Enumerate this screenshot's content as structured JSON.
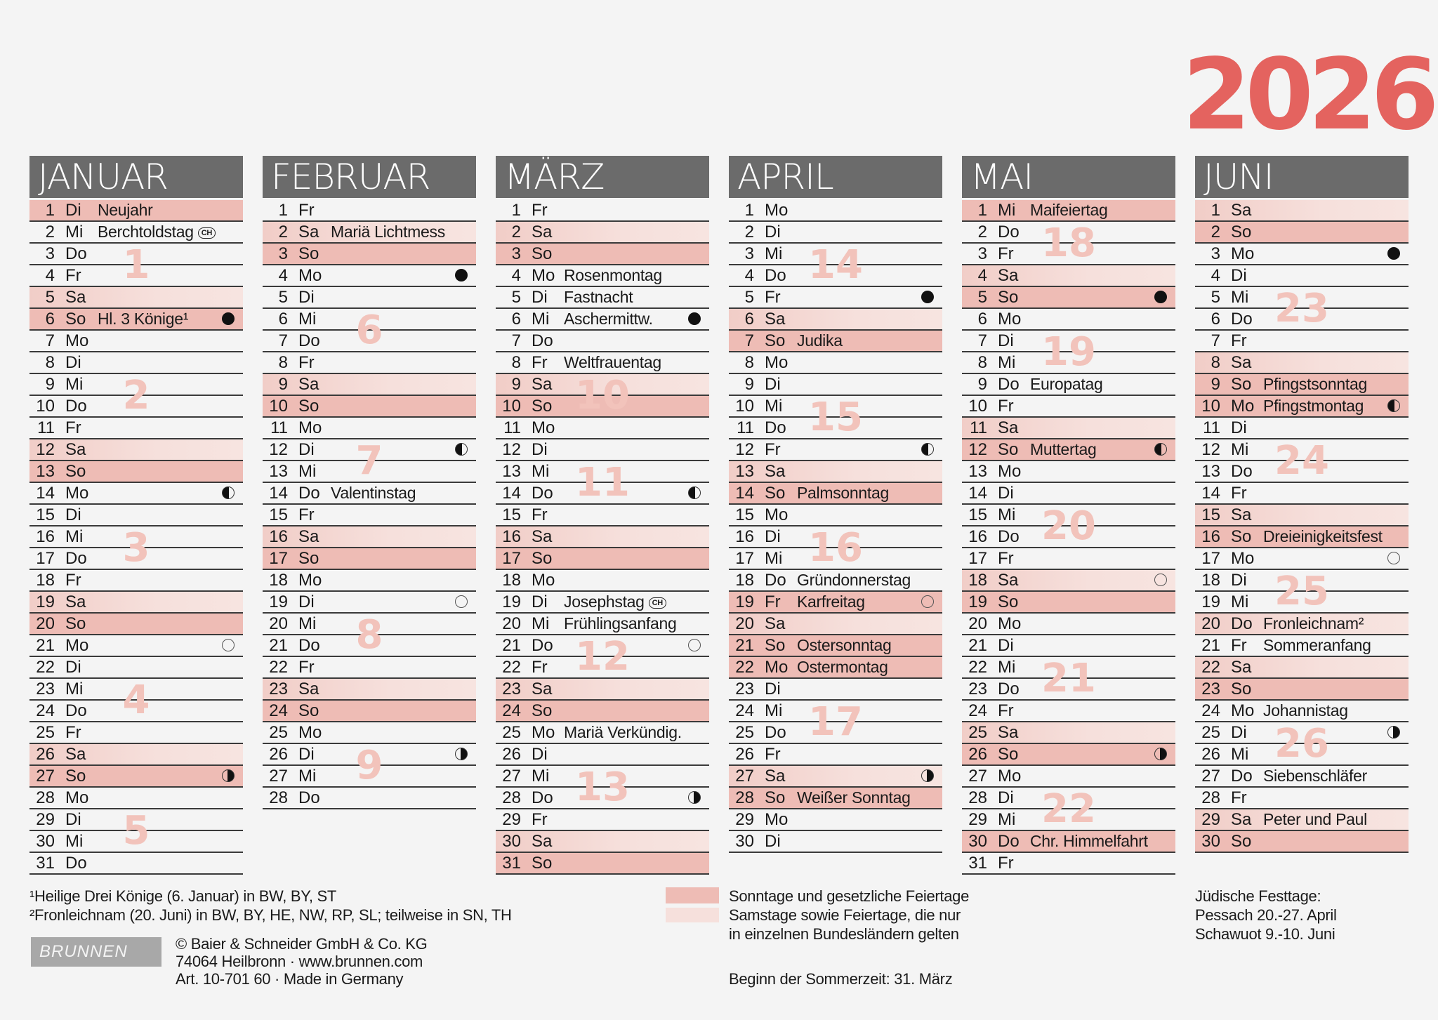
{
  "year": "2026",
  "colors": {
    "year": "#e4635f",
    "header": "#6b6b6b",
    "sunday_holiday": "#eebcb5",
    "saturday_regional": "#f6e0dc",
    "week_number": "#f2c3bb"
  },
  "months": [
    {
      "name": "JANUAR",
      "weeks": [
        {
          "num": "1",
          "from": 1,
          "to": 6
        },
        {
          "num": "2",
          "from": 7,
          "to": 13
        },
        {
          "num": "3",
          "from": 14,
          "to": 20
        },
        {
          "num": "4",
          "from": 21,
          "to": 27
        },
        {
          "num": "5",
          "from": 28,
          "to": 31
        }
      ],
      "days": [
        {
          "d": "1",
          "w": "Di",
          "l": "Neujahr",
          "t": "strong"
        },
        {
          "d": "2",
          "w": "Mi",
          "l": "Berchtoldstag",
          "ch": "CH"
        },
        {
          "d": "3",
          "w": "Do"
        },
        {
          "d": "4",
          "w": "Fr"
        },
        {
          "d": "5",
          "w": "Sa",
          "t": "light"
        },
        {
          "d": "6",
          "w": "So",
          "l": "Hl. 3 Könige¹",
          "t": "strong",
          "m": "full"
        },
        {
          "d": "7",
          "w": "Mo"
        },
        {
          "d": "8",
          "w": "Di"
        },
        {
          "d": "9",
          "w": "Mi"
        },
        {
          "d": "10",
          "w": "Do"
        },
        {
          "d": "11",
          "w": "Fr"
        },
        {
          "d": "12",
          "w": "Sa",
          "t": "light"
        },
        {
          "d": "13",
          "w": "So",
          "t": "strong"
        },
        {
          "d": "14",
          "w": "Mo",
          "m": "first"
        },
        {
          "d": "15",
          "w": "Di"
        },
        {
          "d": "16",
          "w": "Mi"
        },
        {
          "d": "17",
          "w": "Do"
        },
        {
          "d": "18",
          "w": "Fr"
        },
        {
          "d": "19",
          "w": "Sa",
          "t": "light"
        },
        {
          "d": "20",
          "w": "So",
          "t": "strong"
        },
        {
          "d": "21",
          "w": "Mo",
          "m": "new"
        },
        {
          "d": "22",
          "w": "Di"
        },
        {
          "d": "23",
          "w": "Mi"
        },
        {
          "d": "24",
          "w": "Do"
        },
        {
          "d": "25",
          "w": "Fr"
        },
        {
          "d": "26",
          "w": "Sa",
          "t": "light"
        },
        {
          "d": "27",
          "w": "So",
          "t": "strong",
          "m": "last"
        },
        {
          "d": "28",
          "w": "Mo"
        },
        {
          "d": "29",
          "w": "Di"
        },
        {
          "d": "30",
          "w": "Mi"
        },
        {
          "d": "31",
          "w": "Do"
        }
      ]
    },
    {
      "name": "FEBRUAR",
      "weeks": [
        {
          "num": "6",
          "from": 4,
          "to": 10
        },
        {
          "num": "7",
          "from": 11,
          "to": 17
        },
        {
          "num": "8",
          "from": 18,
          "to": 24
        },
        {
          "num": "9",
          "from": 25,
          "to": 28
        }
      ],
      "days": [
        {
          "d": "1",
          "w": "Fr"
        },
        {
          "d": "2",
          "w": "Sa",
          "l": "Mariä Lichtmess",
          "t": "light"
        },
        {
          "d": "3",
          "w": "So",
          "t": "strong"
        },
        {
          "d": "4",
          "w": "Mo",
          "m": "full"
        },
        {
          "d": "5",
          "w": "Di"
        },
        {
          "d": "6",
          "w": "Mi"
        },
        {
          "d": "7",
          "w": "Do"
        },
        {
          "d": "8",
          "w": "Fr"
        },
        {
          "d": "9",
          "w": "Sa",
          "t": "light"
        },
        {
          "d": "10",
          "w": "So",
          "t": "strong"
        },
        {
          "d": "11",
          "w": "Mo"
        },
        {
          "d": "12",
          "w": "Di",
          "m": "first"
        },
        {
          "d": "13",
          "w": "Mi"
        },
        {
          "d": "14",
          "w": "Do",
          "l": "Valentinstag"
        },
        {
          "d": "15",
          "w": "Fr"
        },
        {
          "d": "16",
          "w": "Sa",
          "t": "light"
        },
        {
          "d": "17",
          "w": "So",
          "t": "strong"
        },
        {
          "d": "18",
          "w": "Mo"
        },
        {
          "d": "19",
          "w": "Di",
          "m": "new"
        },
        {
          "d": "20",
          "w": "Mi"
        },
        {
          "d": "21",
          "w": "Do"
        },
        {
          "d": "22",
          "w": "Fr"
        },
        {
          "d": "23",
          "w": "Sa",
          "t": "light"
        },
        {
          "d": "24",
          "w": "So",
          "t": "strong"
        },
        {
          "d": "25",
          "w": "Mo"
        },
        {
          "d": "26",
          "w": "Di",
          "m": "last"
        },
        {
          "d": "27",
          "w": "Mi"
        },
        {
          "d": "28",
          "w": "Do"
        }
      ]
    },
    {
      "name": "MÄRZ",
      "weeks": [
        {
          "num": "10",
          "from": 4,
          "to": 10
        },
        {
          "num": "11",
          "from": 11,
          "to": 17
        },
        {
          "num": "12",
          "from": 18,
          "to": 24
        },
        {
          "num": "13",
          "from": 25,
          "to": 31
        }
      ],
      "days": [
        {
          "d": "1",
          "w": "Fr"
        },
        {
          "d": "2",
          "w": "Sa",
          "t": "light"
        },
        {
          "d": "3",
          "w": "So",
          "t": "strong"
        },
        {
          "d": "4",
          "w": "Mo",
          "l": "Rosenmontag"
        },
        {
          "d": "5",
          "w": "Di",
          "l": "Fastnacht"
        },
        {
          "d": "6",
          "w": "Mi",
          "l": "Aschermittw.",
          "m": "full"
        },
        {
          "d": "7",
          "w": "Do"
        },
        {
          "d": "8",
          "w": "Fr",
          "l": "Weltfrauentag"
        },
        {
          "d": "9",
          "w": "Sa",
          "t": "light"
        },
        {
          "d": "10",
          "w": "So",
          "t": "strong"
        },
        {
          "d": "11",
          "w": "Mo"
        },
        {
          "d": "12",
          "w": "Di"
        },
        {
          "d": "13",
          "w": "Mi"
        },
        {
          "d": "14",
          "w": "Do",
          "m": "first"
        },
        {
          "d": "15",
          "w": "Fr"
        },
        {
          "d": "16",
          "w": "Sa",
          "t": "light"
        },
        {
          "d": "17",
          "w": "So",
          "t": "strong"
        },
        {
          "d": "18",
          "w": "Mo"
        },
        {
          "d": "19",
          "w": "Di",
          "l": "Josephstag",
          "ch": "CH"
        },
        {
          "d": "20",
          "w": "Mi",
          "l": "Frühlingsanfang"
        },
        {
          "d": "21",
          "w": "Do",
          "m": "new"
        },
        {
          "d": "22",
          "w": "Fr"
        },
        {
          "d": "23",
          "w": "Sa",
          "t": "light"
        },
        {
          "d": "24",
          "w": "So",
          "t": "strong"
        },
        {
          "d": "25",
          "w": "Mo",
          "l": "Mariä Verkündig."
        },
        {
          "d": "26",
          "w": "Di"
        },
        {
          "d": "27",
          "w": "Mi"
        },
        {
          "d": "28",
          "w": "Do",
          "m": "last"
        },
        {
          "d": "29",
          "w": "Fr"
        },
        {
          "d": "30",
          "w": "Sa",
          "t": "light"
        },
        {
          "d": "31",
          "w": "So",
          "t": "strong"
        }
      ]
    },
    {
      "name": "APRIL",
      "weeks": [
        {
          "num": "14",
          "from": 1,
          "to": 7
        },
        {
          "num": "15",
          "from": 8,
          "to": 14
        },
        {
          "num": "16",
          "from": 15,
          "to": 21
        },
        {
          "num": "17",
          "from": 22,
          "to": 28
        }
      ],
      "days": [
        {
          "d": "1",
          "w": "Mo"
        },
        {
          "d": "2",
          "w": "Di"
        },
        {
          "d": "3",
          "w": "Mi"
        },
        {
          "d": "4",
          "w": "Do"
        },
        {
          "d": "5",
          "w": "Fr",
          "m": "full"
        },
        {
          "d": "6",
          "w": "Sa",
          "t": "light"
        },
        {
          "d": "7",
          "w": "So",
          "l": "Judika",
          "t": "strong"
        },
        {
          "d": "8",
          "w": "Mo"
        },
        {
          "d": "9",
          "w": "Di"
        },
        {
          "d": "10",
          "w": "Mi"
        },
        {
          "d": "11",
          "w": "Do"
        },
        {
          "d": "12",
          "w": "Fr",
          "m": "first"
        },
        {
          "d": "13",
          "w": "Sa",
          "t": "light"
        },
        {
          "d": "14",
          "w": "So",
          "l": "Palmsonntag",
          "t": "strong"
        },
        {
          "d": "15",
          "w": "Mo"
        },
        {
          "d": "16",
          "w": "Di"
        },
        {
          "d": "17",
          "w": "Mi"
        },
        {
          "d": "18",
          "w": "Do",
          "l": "Gründonnerstag"
        },
        {
          "d": "19",
          "w": "Fr",
          "l": "Karfreitag",
          "t": "strong",
          "m": "new"
        },
        {
          "d": "20",
          "w": "Sa",
          "t": "light"
        },
        {
          "d": "21",
          "w": "So",
          "l": "Ostersonntag",
          "t": "strong"
        },
        {
          "d": "22",
          "w": "Mo",
          "l": "Ostermontag",
          "t": "strong"
        },
        {
          "d": "23",
          "w": "Di"
        },
        {
          "d": "24",
          "w": "Mi"
        },
        {
          "d": "25",
          "w": "Do"
        },
        {
          "d": "26",
          "w": "Fr"
        },
        {
          "d": "27",
          "w": "Sa",
          "t": "light",
          "m": "last"
        },
        {
          "d": "28",
          "w": "So",
          "l": "Weißer Sonntag",
          "t": "strong"
        },
        {
          "d": "29",
          "w": "Mo"
        },
        {
          "d": "30",
          "w": "Di"
        }
      ]
    },
    {
      "name": "MAI",
      "weeks": [
        {
          "num": "18",
          "from": 1,
          "to": 5
        },
        {
          "num": "19",
          "from": 6,
          "to": 12
        },
        {
          "num": "20",
          "from": 13,
          "to": 19
        },
        {
          "num": "21",
          "from": 20,
          "to": 26
        },
        {
          "num": "22",
          "from": 27,
          "to": 31
        }
      ],
      "days": [
        {
          "d": "1",
          "w": "Mi",
          "l": "Maifeiertag",
          "t": "strong"
        },
        {
          "d": "2",
          "w": "Do"
        },
        {
          "d": "3",
          "w": "Fr"
        },
        {
          "d": "4",
          "w": "Sa",
          "t": "light"
        },
        {
          "d": "5",
          "w": "So",
          "t": "strong",
          "m": "full"
        },
        {
          "d": "6",
          "w": "Mo"
        },
        {
          "d": "7",
          "w": "Di"
        },
        {
          "d": "8",
          "w": "Mi"
        },
        {
          "d": "9",
          "w": "Do",
          "l": "Europatag"
        },
        {
          "d": "10",
          "w": "Fr"
        },
        {
          "d": "11",
          "w": "Sa",
          "t": "light"
        },
        {
          "d": "12",
          "w": "So",
          "l": "Muttertag",
          "t": "strong",
          "m": "first"
        },
        {
          "d": "13",
          "w": "Mo"
        },
        {
          "d": "14",
          "w": "Di"
        },
        {
          "d": "15",
          "w": "Mi"
        },
        {
          "d": "16",
          "w": "Do"
        },
        {
          "d": "17",
          "w": "Fr"
        },
        {
          "d": "18",
          "w": "Sa",
          "t": "light",
          "m": "new"
        },
        {
          "d": "19",
          "w": "So",
          "t": "strong"
        },
        {
          "d": "20",
          "w": "Mo"
        },
        {
          "d": "21",
          "w": "Di"
        },
        {
          "d": "22",
          "w": "Mi"
        },
        {
          "d": "23",
          "w": "Do"
        },
        {
          "d": "24",
          "w": "Fr"
        },
        {
          "d": "25",
          "w": "Sa",
          "t": "light"
        },
        {
          "d": "26",
          "w": "So",
          "t": "strong",
          "m": "last"
        },
        {
          "d": "27",
          "w": "Mo"
        },
        {
          "d": "28",
          "w": "Di"
        },
        {
          "d": "29",
          "w": "Mi"
        },
        {
          "d": "30",
          "w": "Do",
          "l": "Chr. Himmelfahrt",
          "t": "strong"
        },
        {
          "d": "31",
          "w": "Fr"
        }
      ]
    },
    {
      "name": "JUNI",
      "weeks": [
        {
          "num": "23",
          "from": 3,
          "to": 9
        },
        {
          "num": "24",
          "from": 10,
          "to": 16
        },
        {
          "num": "25",
          "from": 17,
          "to": 23
        },
        {
          "num": "26",
          "from": 24,
          "to": 30
        }
      ],
      "days": [
        {
          "d": "1",
          "w": "Sa",
          "t": "light"
        },
        {
          "d": "2",
          "w": "So",
          "t": "strong"
        },
        {
          "d": "3",
          "w": "Mo",
          "m": "full"
        },
        {
          "d": "4",
          "w": "Di"
        },
        {
          "d": "5",
          "w": "Mi"
        },
        {
          "d": "6",
          "w": "Do"
        },
        {
          "d": "7",
          "w": "Fr"
        },
        {
          "d": "8",
          "w": "Sa",
          "t": "light"
        },
        {
          "d": "9",
          "w": "So",
          "l": "Pfingstsonntag",
          "t": "strong"
        },
        {
          "d": "10",
          "w": "Mo",
          "l": "Pfingstmontag",
          "t": "strong",
          "m": "first"
        },
        {
          "d": "11",
          "w": "Di"
        },
        {
          "d": "12",
          "w": "Mi"
        },
        {
          "d": "13",
          "w": "Do"
        },
        {
          "d": "14",
          "w": "Fr"
        },
        {
          "d": "15",
          "w": "Sa",
          "t": "light"
        },
        {
          "d": "16",
          "w": "So",
          "l": "Dreieinigkeitsfest",
          "t": "strong"
        },
        {
          "d": "17",
          "w": "Mo",
          "m": "new"
        },
        {
          "d": "18",
          "w": "Di"
        },
        {
          "d": "19",
          "w": "Mi"
        },
        {
          "d": "20",
          "w": "Do",
          "l": "Fronleichnam²",
          "t": "light"
        },
        {
          "d": "21",
          "w": "Fr",
          "l": "Sommeranfang"
        },
        {
          "d": "22",
          "w": "Sa",
          "t": "light"
        },
        {
          "d": "23",
          "w": "So",
          "t": "strong"
        },
        {
          "d": "24",
          "w": "Mo",
          "l": "Johannistag"
        },
        {
          "d": "25",
          "w": "Di",
          "m": "last"
        },
        {
          "d": "26",
          "w": "Mi"
        },
        {
          "d": "27",
          "w": "Do",
          "l": "Siebenschläfer"
        },
        {
          "d": "28",
          "w": "Fr"
        },
        {
          "d": "29",
          "w": "Sa",
          "l": "Peter und Paul",
          "t": "light"
        },
        {
          "d": "30",
          "w": "So",
          "t": "strong"
        }
      ]
    }
  ],
  "footnotes": [
    "¹Heilige Drei Könige (6. Januar) in BW, BY, ST",
    "²Fronleichnam (20. Juni) in BW, BY, HE, NW, RP, SL; teilweise in SN, TH"
  ],
  "logo": "BRUNNEN",
  "imprint": [
    "© Baier & Schneider GmbH & Co. KG",
    "74064 Heilbronn · www.brunnen.com",
    "Art. 10-701 60 · Made in Germany"
  ],
  "legend": {
    "strong": "Sonntage und gesetzliche Feiertage",
    "light_1": "Samstage sowie Feiertage, die nur",
    "light_2": "in einzelnen Bundesländern gelten"
  },
  "dst": "Beginn der Sommerzeit: 31. März",
  "jewish": [
    "Jüdische Festtage:",
    "Pessach 20.-27. April",
    "Schawuot 9.-10. Juni"
  ]
}
